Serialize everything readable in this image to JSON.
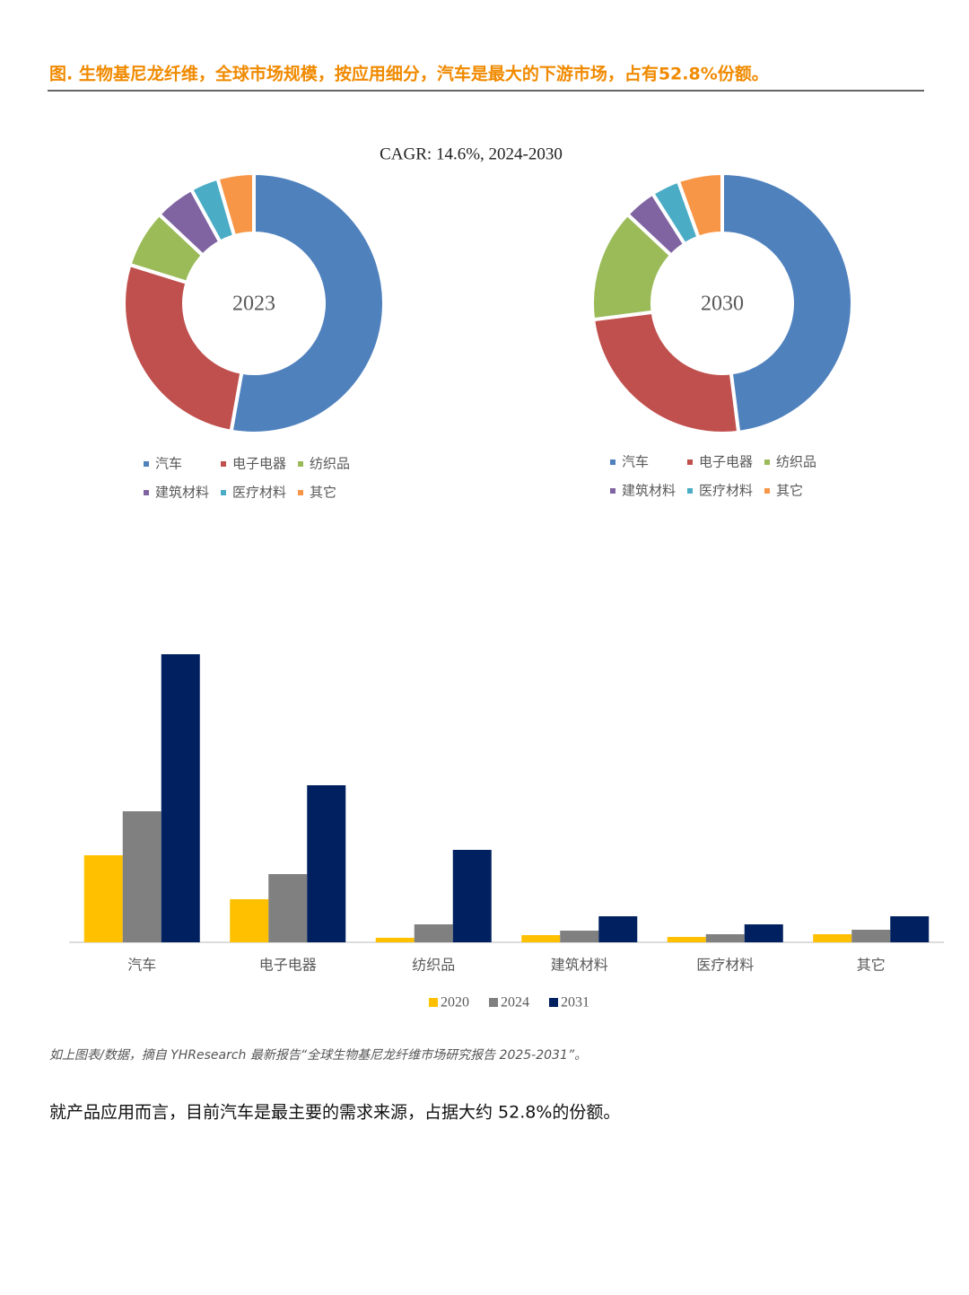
{
  "header": {
    "title": "图.   生物基尼龙纤维，全球市场规模，按应用细分，汽车是最大的下游市场，占有52.8%份额。"
  },
  "chart_data": [
    {
      "type": "donut",
      "annotation": "CAGR:   14.6%, 2024-2030",
      "center_label": "2023",
      "categories": [
        "汽车",
        "电子电器",
        "纺织品",
        "建筑材料",
        "医疗材料",
        "其它"
      ],
      "values": [
        52.8,
        27,
        7.2,
        5,
        3.5,
        4.5
      ],
      "colors": [
        "#4f81bd",
        "#c0504d",
        "#9bbb59",
        "#8064a2",
        "#4bacc6",
        "#f79646"
      ]
    },
    {
      "type": "donut",
      "center_label": "2030",
      "categories": [
        "汽车",
        "电子电器",
        "纺织品",
        "建筑材料",
        "医疗材料",
        "其它"
      ],
      "values": [
        48,
        25,
        14,
        4,
        3.5,
        5.5
      ],
      "colors": [
        "#4f81bd",
        "#c0504d",
        "#9bbb59",
        "#8064a2",
        "#4bacc6",
        "#f79646"
      ]
    },
    {
      "type": "bar",
      "categories": [
        "汽车",
        "电子电器",
        "纺织品",
        "建筑材料",
        "医疗材料",
        "其它"
      ],
      "series": [
        {
          "name": "2020",
          "color": "#ffc000",
          "values": [
            97,
            48,
            5,
            8,
            6,
            9
          ]
        },
        {
          "name": "2024",
          "color": "#808080",
          "values": [
            146,
            76,
            20,
            13,
            9,
            14
          ]
        },
        {
          "name": "2031",
          "color": "#002060",
          "values": [
            321,
            175,
            103,
            29,
            20,
            29
          ]
        }
      ],
      "ylim": [
        0,
        350
      ]
    }
  ],
  "note": "如上图表/数据，摘自 YHResearch 最新报告“全球生物基尼龙纤维市场研究报告 2025-2031”。",
  "body": "就产品应用而言，目前汽车是最主要的需求来源，占据大约 52.8%的份额。"
}
